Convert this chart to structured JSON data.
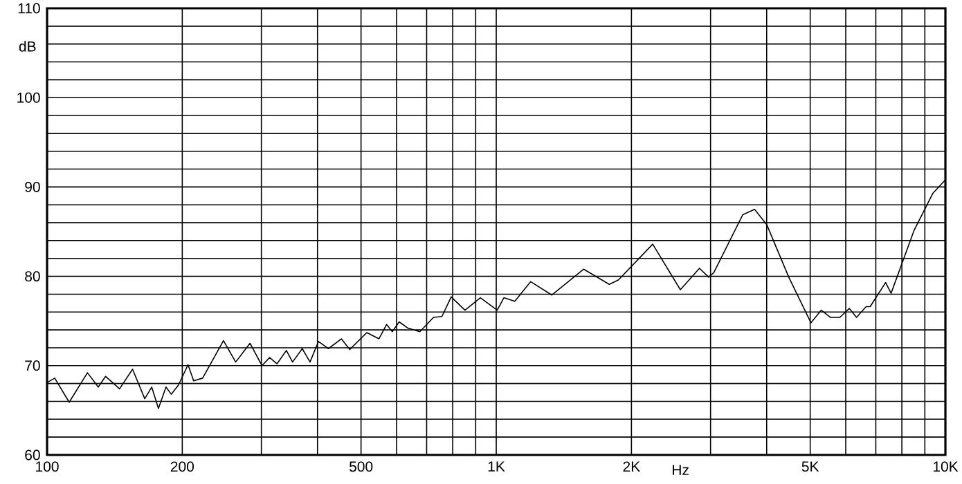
{
  "chart_data": {
    "type": "line",
    "xlabel": "Hz",
    "ylabel": "dB",
    "log": "x",
    "grid": true,
    "marker": "none",
    "line_style": "solid",
    "xlim": [
      100,
      10000
    ],
    "ylim": [
      60,
      110
    ],
    "xticks": [
      {
        "value": 100,
        "label": "100"
      },
      {
        "value": 200,
        "label": "200"
      },
      {
        "value": 300,
        "label": null
      },
      {
        "value": 400,
        "label": null
      },
      {
        "value": 500,
        "label": "500"
      },
      {
        "value": 600,
        "label": null
      },
      {
        "value": 700,
        "label": null
      },
      {
        "value": 800,
        "label": null
      },
      {
        "value": 900,
        "label": null
      },
      {
        "value": 1000,
        "label": "1K"
      },
      {
        "value": 2000,
        "label": "2K"
      },
      {
        "value": 3000,
        "label": null
      },
      {
        "value": 4000,
        "label": null
      },
      {
        "value": 5000,
        "label": "5K"
      },
      {
        "value": 6000,
        "label": null
      },
      {
        "value": 7000,
        "label": null
      },
      {
        "value": 8000,
        "label": null
      },
      {
        "value": 9000,
        "label": null
      },
      {
        "value": 10000,
        "label": "10K"
      }
    ],
    "yticks": [
      60,
      {
        "value": 62,
        "label": null
      },
      {
        "value": 64,
        "label": null
      },
      {
        "value": 66,
        "label": null
      },
      {
        "value": 68,
        "label": null
      },
      70,
      {
        "value": 72,
        "label": null
      },
      {
        "value": 74,
        "label": null
      },
      {
        "value": 76,
        "label": null
      },
      {
        "value": 78,
        "label": null
      },
      80,
      {
        "value": 82,
        "label": null
      },
      {
        "value": 84,
        "label": null
      },
      {
        "value": 86,
        "label": null
      },
      {
        "value": 88,
        "label": null
      },
      90,
      {
        "value": 92,
        "label": null
      },
      {
        "value": 94,
        "label": null
      },
      {
        "value": 96,
        "label": null
      },
      {
        "value": 98,
        "label": null
      },
      100,
      {
        "value": 102,
        "label": null
      },
      {
        "value": 104,
        "label": null
      },
      {
        "value": 106,
        "label": null
      },
      {
        "value": 108,
        "label": null
      },
      110
    ],
    "series": [
      {
        "color": "#000000",
        "x": [
          100,
          104,
          112,
          123,
          130,
          135,
          145,
          155,
          165,
          171,
          177,
          184,
          189,
          196,
          206,
          212,
          222,
          247,
          263,
          283,
          301,
          313,
          325,
          341,
          352,
          370,
          385,
          402,
          423,
          452,
          472,
          515,
          548,
          570,
          587,
          608,
          636,
          676,
          725,
          757,
          794,
          852,
          922,
          1005,
          1040,
          1100,
          1193,
          1330,
          1565,
          1785,
          1872,
          2230,
          2570,
          2835,
          2970,
          3050,
          3540,
          3760,
          4000,
          4480,
          5020,
          5290,
          5550,
          5820,
          6110,
          6340,
          6660,
          6800,
          7360,
          7570,
          8510,
          9380,
          10000
        ],
        "values": [
          68.1,
          68.6,
          65.9,
          69.2,
          67.6,
          68.8,
          67.4,
          69.6,
          66.3,
          67.6,
          65.2,
          67.6,
          66.8,
          67.8,
          70.1,
          68.3,
          68.6,
          72.8,
          70.4,
          72.5,
          70.0,
          70.9,
          70.2,
          71.7,
          70.4,
          71.9,
          70.4,
          72.7,
          71.9,
          73.0,
          71.8,
          73.7,
          73.0,
          74.6,
          73.8,
          74.9,
          74.2,
          73.8,
          75.4,
          75.5,
          77.7,
          76.2,
          77.6,
          76.2,
          77.6,
          77.2,
          79.4,
          77.9,
          80.8,
          79.1,
          79.6,
          83.6,
          78.5,
          80.9,
          79.9,
          80.4,
          86.9,
          87.5,
          85.8,
          79.9,
          74.8,
          76.2,
          75.4,
          75.4,
          76.4,
          75.4,
          76.6,
          76.6,
          79.3,
          78.1,
          85.1,
          89.3,
          90.8
        ]
      }
    ]
  }
}
